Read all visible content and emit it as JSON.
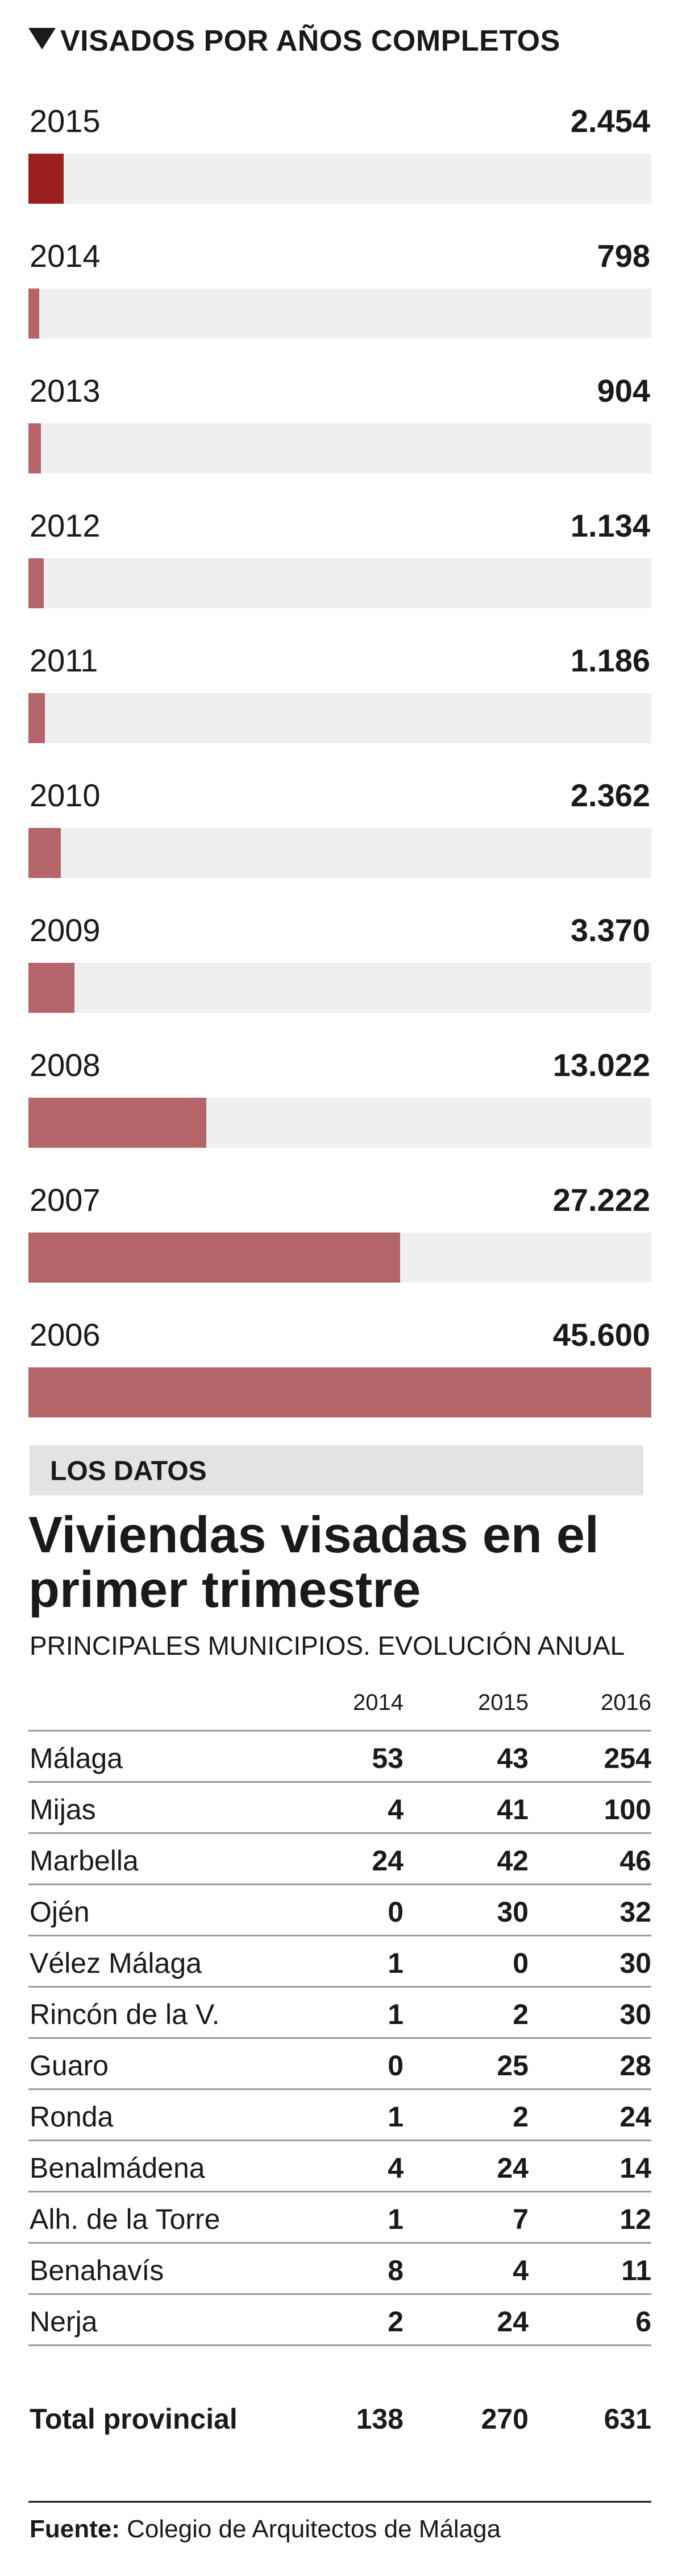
{
  "chart_data": {
    "type": "bar",
    "title": "VISADOS POR AÑOS COMPLETOS",
    "categories": [
      "2015",
      "2014",
      "2013",
      "2012",
      "2011",
      "2010",
      "2009",
      "2008",
      "2007",
      "2006"
    ],
    "values": [
      2454,
      798,
      904,
      1134,
      1186,
      2362,
      3370,
      13022,
      27222,
      45600
    ],
    "value_labels": [
      "2.454",
      "798",
      "904",
      "1.134",
      "1.186",
      "2.362",
      "3.370",
      "13.022",
      "27.222",
      "45.600"
    ],
    "xlim": [
      0,
      45600
    ],
    "grid": false,
    "colors": {
      "highlight": "#9c1f1f",
      "bar": "#b5656a",
      "track": "#efefef"
    }
  },
  "section": {
    "label": "LOS DATOS"
  },
  "table": {
    "title": "Viviendas visadas en el primer trimestre",
    "subtitle": "PRINCIPALES MUNICIPIOS. EVOLUCIÓN ANUAL",
    "columns": [
      "2014",
      "2015",
      "2016"
    ],
    "rows": [
      {
        "name": "Málaga",
        "values": [
          "53",
          "43",
          "254"
        ]
      },
      {
        "name": "Mijas",
        "values": [
          "4",
          "41",
          "100"
        ]
      },
      {
        "name": "Marbella",
        "values": [
          "24",
          "42",
          "46"
        ]
      },
      {
        "name": "Ojén",
        "values": [
          "0",
          "30",
          "32"
        ]
      },
      {
        "name": "Vélez Málaga",
        "values": [
          "1",
          "0",
          "30"
        ]
      },
      {
        "name": "Rincón de la V.",
        "values": [
          "1",
          "2",
          "30"
        ]
      },
      {
        "name": "Guaro",
        "values": [
          "0",
          "25",
          "28"
        ]
      },
      {
        "name": "Ronda",
        "values": [
          "1",
          "2",
          "24"
        ]
      },
      {
        "name": "Benalmádena",
        "values": [
          "4",
          "24",
          "14"
        ]
      },
      {
        "name": "Alh. de la Torre",
        "values": [
          "1",
          "7",
          "12"
        ]
      },
      {
        "name": "Benahavís",
        "values": [
          "8",
          "4",
          "11"
        ]
      },
      {
        "name": "Nerja",
        "values": [
          "2",
          "24",
          "6"
        ]
      }
    ],
    "total": {
      "name": "Total provincial",
      "values": [
        "138",
        "270",
        "631"
      ]
    }
  },
  "footer": {
    "source_label": "Fuente:",
    "source_text": "Colegio de Arquitectos de Málaga"
  }
}
